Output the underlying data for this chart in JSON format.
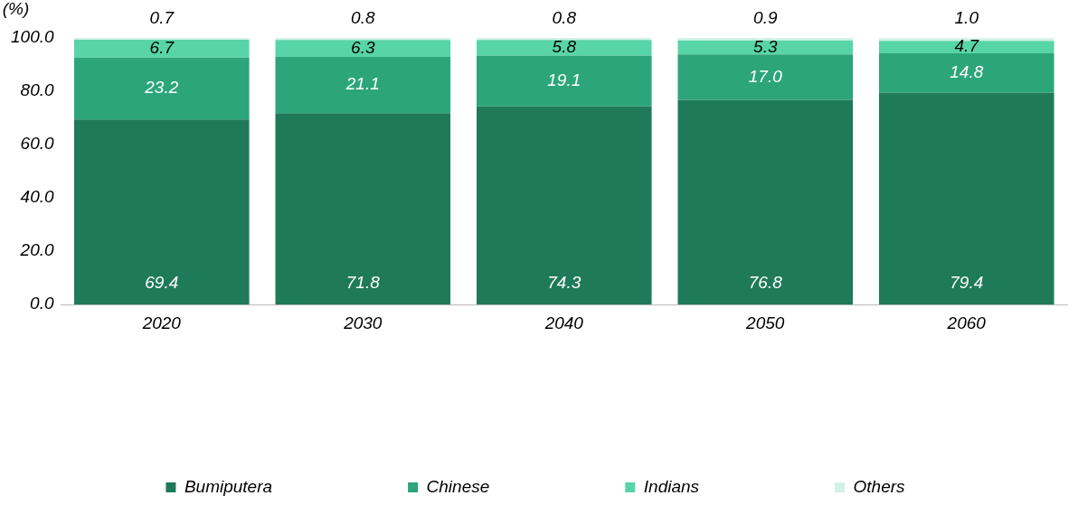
{
  "chart_data": {
    "type": "bar",
    "stacked": true,
    "ylabel": "(%)",
    "categories": [
      "2020",
      "2030",
      "2040",
      "2050",
      "2060"
    ],
    "series": [
      {
        "name": "Bumiputera",
        "color": "#1f7a5a",
        "values": [
          69.4,
          71.8,
          74.3,
          76.8,
          79.4
        ],
        "value_labels": [
          "69.4",
          "71.8",
          "74.3",
          "76.8",
          "79.4"
        ]
      },
      {
        "name": "Chinese",
        "color": "#2ca57b",
        "values": [
          23.2,
          21.1,
          19.1,
          17.0,
          14.8
        ],
        "value_labels": [
          "23.2",
          "21.1",
          "19.1",
          "17.0",
          "14.8"
        ]
      },
      {
        "name": "Indians",
        "color": "#58d5a8",
        "values": [
          6.7,
          6.3,
          5.8,
          5.3,
          4.7
        ],
        "value_labels": [
          "6.7",
          "6.3",
          "5.8",
          "5.3",
          "4.7"
        ]
      },
      {
        "name": "Others",
        "color": "#d2f2e6",
        "values": [
          0.7,
          0.8,
          0.8,
          0.9,
          1.0
        ],
        "value_labels": [
          "0.7",
          "0.8",
          "0.8",
          "0.9",
          "1.0"
        ]
      }
    ],
    "ylim": [
      0,
      100
    ],
    "yticks": [
      {
        "value": 0,
        "label": "0.0"
      },
      {
        "value": 20,
        "label": "20.0"
      },
      {
        "value": 40,
        "label": "40.0"
      },
      {
        "value": 60,
        "label": "60.0"
      },
      {
        "value": 80,
        "label": "80.0"
      },
      {
        "value": 100,
        "label": "100.0"
      }
    ],
    "grid": false,
    "legend": "bottom"
  }
}
